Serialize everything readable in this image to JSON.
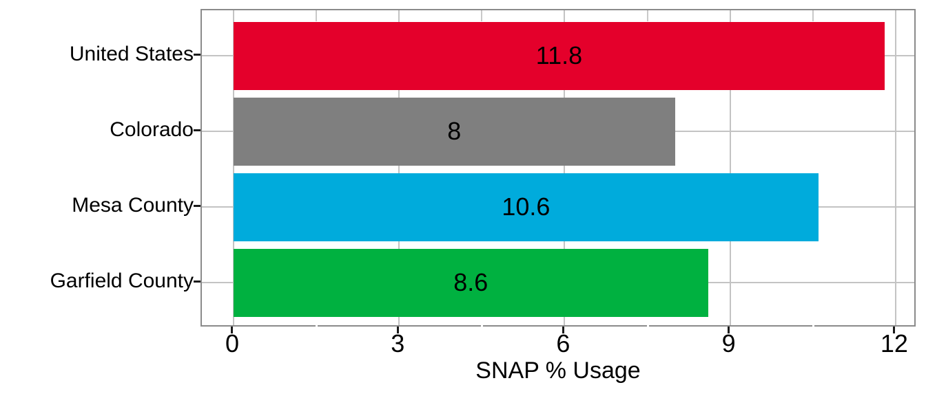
{
  "chart_data": {
    "type": "bar",
    "orientation": "horizontal",
    "title": "",
    "xlabel": "SNAP % Usage",
    "ylabel": "",
    "categories": [
      "United States",
      "Colorado",
      "Mesa County",
      "Garfield County"
    ],
    "values": [
      11.8,
      8,
      10.6,
      8.6
    ],
    "value_labels": [
      "11.8",
      "8",
      "10.6",
      "8.6"
    ],
    "bar_colors": [
      "#E4002B",
      "#7F7F7F",
      "#00ABDC",
      "#00B140"
    ],
    "x_ticks": [
      0,
      3,
      6,
      9,
      12
    ],
    "x_tick_labels": [
      "0",
      "3",
      "6",
      "9",
      "12"
    ],
    "x_minor_ticks": [
      1.5,
      4.5,
      7.5,
      10.5
    ],
    "xlim": [
      -0.574,
      12.388
    ],
    "grid": true,
    "legend": false
  },
  "style": {
    "background": "#FFFFFF",
    "major_grid_color": "#C3C3C3",
    "minor_tick_color": "#C9C9C9",
    "panel_border_color": "#8A8A8A",
    "axis_tick_color": "#1A1A1A",
    "text_color": "#000000"
  }
}
